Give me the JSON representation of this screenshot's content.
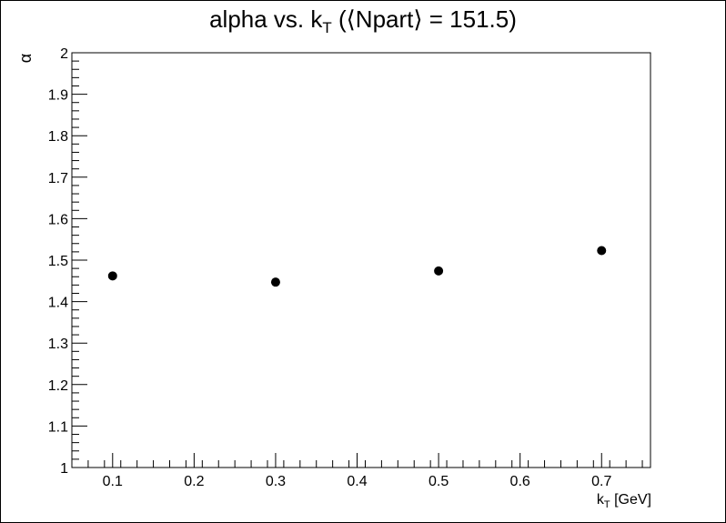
{
  "chart_data": {
    "type": "scatter",
    "title": {
      "main": "alpha vs. k",
      "sub": "T",
      "rest": " (⟨Npart⟩ = 151.5)"
    },
    "xlabel": {
      "main": "k",
      "sub": "T",
      "rest": " [GeV]"
    },
    "ylabel": "α",
    "xlim": [
      0.05,
      0.76
    ],
    "ylim": [
      1.0,
      2.0
    ],
    "x_ticks": [
      0.1,
      0.2,
      0.3,
      0.4,
      0.5,
      0.6,
      0.7
    ],
    "x_tick_labels": [
      "0.1",
      "0.2",
      "0.3",
      "0.4",
      "0.5",
      "0.6",
      "0.7"
    ],
    "y_ticks": [
      1.0,
      1.1,
      1.2,
      1.3,
      1.4,
      1.5,
      1.6,
      1.7,
      1.8,
      1.9,
      2.0
    ],
    "y_tick_labels": [
      "1",
      "1.1",
      "1.2",
      "1.3",
      "1.4",
      "1.5",
      "1.6",
      "1.7",
      "1.8",
      "1.9",
      "2"
    ],
    "x": [
      0.1,
      0.3,
      0.5,
      0.7
    ],
    "y": [
      1.462,
      1.447,
      1.474,
      1.523
    ],
    "grid": false,
    "marker_color": "#000000"
  }
}
